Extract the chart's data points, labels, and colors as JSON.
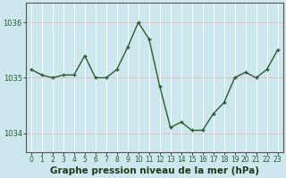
{
  "x": [
    0,
    1,
    2,
    3,
    4,
    5,
    6,
    7,
    8,
    9,
    10,
    11,
    12,
    13,
    14,
    15,
    16,
    17,
    18,
    19,
    20,
    21,
    22,
    23
  ],
  "y": [
    1035.15,
    1035.05,
    1035.0,
    1035.05,
    1035.05,
    1035.4,
    1035.0,
    1035.0,
    1035.15,
    1035.55,
    1036.0,
    1035.7,
    1034.85,
    1034.1,
    1034.2,
    1034.05,
    1034.05,
    1034.35,
    1034.55,
    1035.0,
    1035.1,
    1035.0,
    1035.15,
    1035.5
  ],
  "line_color": "#2d5a2d",
  "marker_color": "#2d5a2d",
  "background_color": "#cce8ee",
  "grid_color_h": "#e8b8c0",
  "grid_color_v": "#ffffff",
  "ylim": [
    1033.65,
    1036.35
  ],
  "yticks": [
    1034,
    1035,
    1036
  ],
  "xticks": [
    0,
    1,
    2,
    3,
    4,
    5,
    6,
    7,
    8,
    9,
    10,
    11,
    12,
    13,
    14,
    15,
    16,
    17,
    18,
    19,
    20,
    21,
    22,
    23
  ],
  "xlabel": "Graphe pression niveau de la mer (hPa)",
  "xlabel_fontsize": 7.5,
  "tick_fontsize": 5.5,
  "ytick_fontsize": 6
}
